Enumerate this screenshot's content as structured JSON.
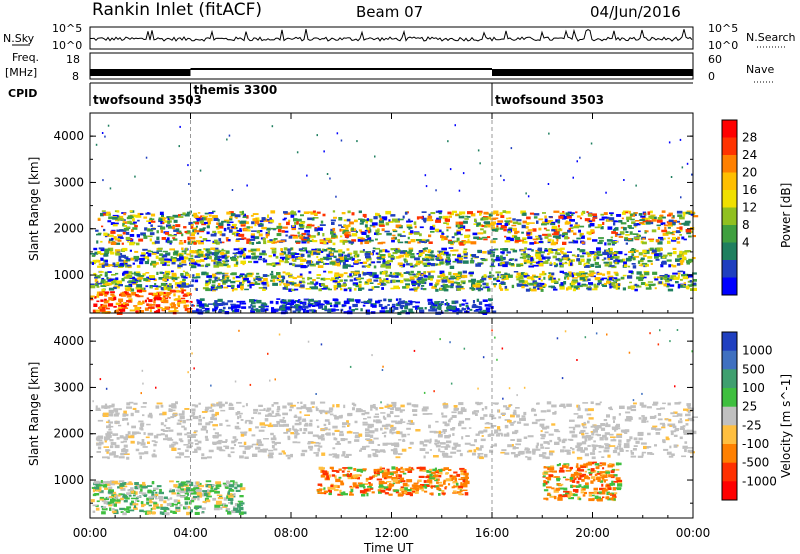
{
  "header": {
    "station": "Rankin Inlet (fitACF)",
    "beam": "Beam 07",
    "date": "04/Jun/2016"
  },
  "top_panels": {
    "nsky_label": "N.Sky",
    "nsearch_label": "N.Search",
    "nsky_ticks": [
      "10^5",
      "10^0"
    ],
    "nsearch_ticks": [
      "10^5",
      "10^0"
    ],
    "freq_label_1": "Freq.",
    "freq_label_2": "[MHz]",
    "freq_ticks": [
      "18",
      "8"
    ],
    "nave_label": "Nave",
    "nave_ticks": [
      "60",
      "0"
    ],
    "cpid_label": "CPID",
    "cpid_segments": [
      {
        "label": "twofsound 3503",
        "start_hour": 0,
        "end_hour": 4
      },
      {
        "label": "themis 3300",
        "start_hour": 4,
        "end_hour": 16
      },
      {
        "label": "twofsound 3503",
        "start_hour": 16,
        "end_hour": 24
      }
    ]
  },
  "chart_data": [
    {
      "type": "heatmap",
      "name": "Power",
      "ylabel": "Slant Range [km]",
      "colorbar_label": "Power [dB]",
      "colorbar_ticks": [
        "28",
        "24",
        "20",
        "16",
        "12",
        "8",
        "4"
      ],
      "colorbar_colors": [
        "#ff0000",
        "#ff3300",
        "#ff8000",
        "#ffbf00",
        "#f0e000",
        "#90c020",
        "#3f9f3f",
        "#1f7f5f",
        "#1f3fbf",
        "#0000ff"
      ],
      "y_ticks": [
        "4000",
        "3000",
        "2000",
        "1000"
      ],
      "ylim": [
        180,
        4500
      ],
      "x_ticks": [
        "00:00",
        "04:00",
        "08:00",
        "12:00",
        "16:00",
        "20:00",
        "00:00"
      ],
      "x_range_hours": [
        0,
        24
      ],
      "regions": [
        {
          "hour_start": 0.2,
          "hour_end": 24,
          "range_start": 1700,
          "range_end": 2400,
          "level": "mid-high"
        },
        {
          "hour_start": 0,
          "hour_end": 24,
          "range_start": 1200,
          "range_end": 1600,
          "level": "mid"
        },
        {
          "hour_start": 0,
          "hour_end": 24,
          "range_start": 700,
          "range_end": 1100,
          "level": "mid"
        },
        {
          "hour_start": 0,
          "hour_end": 4,
          "range_start": 200,
          "range_end": 700,
          "level": "high"
        },
        {
          "hour_start": 4,
          "hour_end": 16,
          "range_start": 200,
          "range_end": 500,
          "level": "low"
        }
      ]
    },
    {
      "type": "heatmap",
      "name": "Velocity",
      "ylabel": "Slant Range [km]",
      "colorbar_label": "Velocity [m s^-1]",
      "colorbar_ticks": [
        "1000",
        "500",
        "100",
        "25",
        "-25",
        "-100",
        "-500",
        "-1000"
      ],
      "colorbar_colors": [
        "#2040c0",
        "#3f70c0",
        "#3f9f6f",
        "#3fbf3f",
        "#c0c0c0",
        "#ffbf40",
        "#ff8000",
        "#ff3000",
        "#ff0000"
      ],
      "y_ticks": [
        "4000",
        "3000",
        "2000",
        "1000"
      ],
      "ylim": [
        180,
        4500
      ],
      "x_ticks": [
        "00:00",
        "04:00",
        "08:00",
        "12:00",
        "16:00",
        "20:00",
        "00:00"
      ],
      "x_range_hours": [
        0,
        24
      ],
      "xlabel": "Time UT",
      "regions": [
        {
          "hour_start": 0.2,
          "hour_end": 24,
          "range_start": 1500,
          "range_end": 2700,
          "velocity": "ground-scatter"
        },
        {
          "hour_start": 0,
          "hour_end": 6,
          "range_start": 300,
          "range_end": 1000,
          "velocity": "positive"
        },
        {
          "hour_start": 9,
          "hour_end": 15,
          "range_start": 700,
          "range_end": 1300,
          "velocity": "negative"
        },
        {
          "hour_start": 18,
          "hour_end": 21,
          "range_start": 600,
          "range_end": 1400,
          "velocity": "negative"
        }
      ]
    }
  ]
}
